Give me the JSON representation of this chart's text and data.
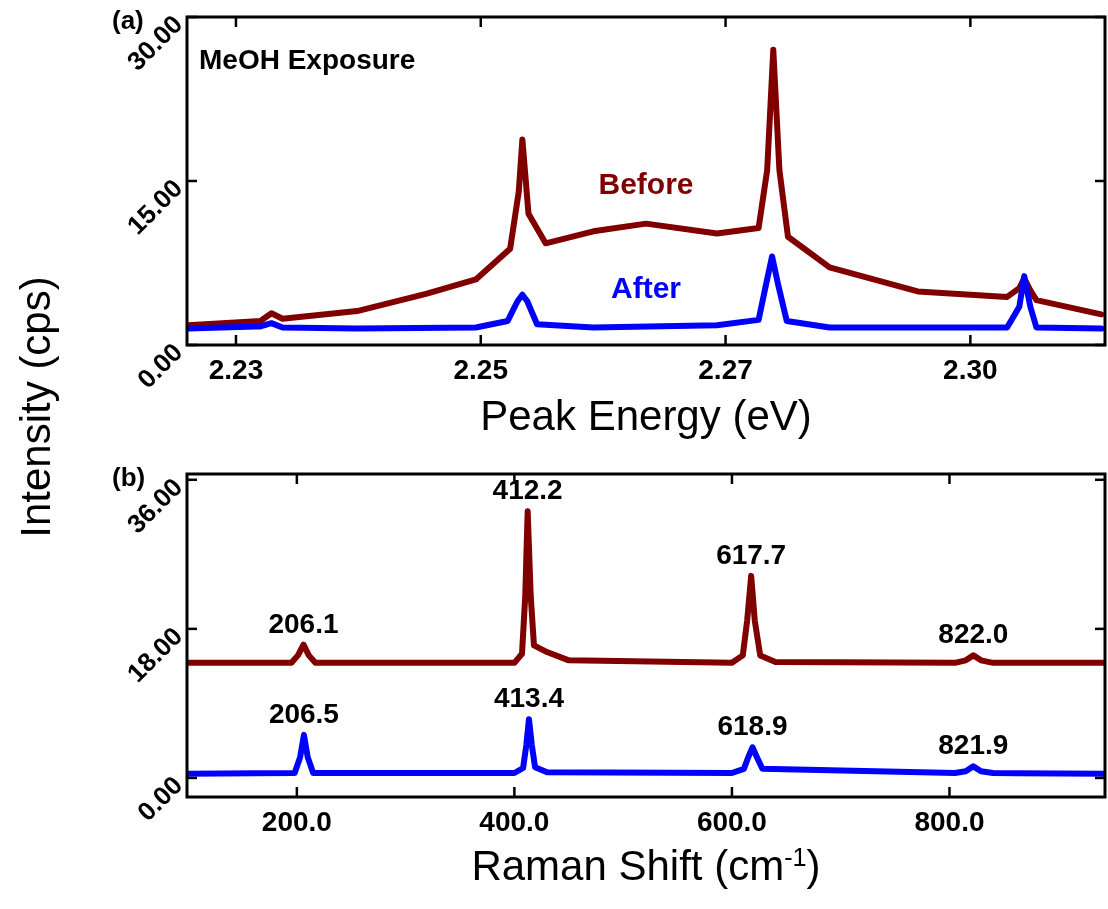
{
  "chart_data": [
    {
      "type": "line",
      "ylabel": "Intensity (cps)",
      "xlabel": "Peak Energy (eV)",
      "annotations": [
        "(a)",
        "MeOH Exposure"
      ],
      "xlim": [
        2.231,
        2.306
      ],
      "ylim": [
        0,
        30
      ],
      "xticks": [
        {
          "value": 2.235,
          "label": "2.23"
        },
        {
          "value": 2.255,
          "label": "2.25"
        },
        {
          "value": 2.275,
          "label": "2.27"
        },
        {
          "value": 2.295,
          "label": "2.30"
        }
      ],
      "yticks": [
        {
          "value": 0,
          "label": "0.00"
        },
        {
          "value": 15,
          "label": "15.00"
        },
        {
          "value": 30,
          "label": "30.00"
        }
      ],
      "grid": false,
      "legend": false,
      "line_style": "solid",
      "series": [
        {
          "name": "Before",
          "color": "#800000",
          "x": [
            2.2311,
            2.237,
            2.2379,
            2.2388,
            2.2449,
            2.2506,
            2.2546,
            2.2574,
            2.2581,
            2.2584,
            2.2589,
            2.2603,
            2.2642,
            2.2685,
            2.2743,
            2.2777,
            2.2784,
            2.2789,
            2.2794,
            2.2801,
            2.2835,
            2.2907,
            2.298,
            2.299,
            2.2994,
            2.2999,
            2.3004,
            2.3057
          ],
          "values": [
            1.8,
            2.2,
            2.9,
            2.4,
            3.1,
            4.7,
            6.0,
            8.8,
            14,
            18.8,
            12,
            9.3,
            10.4,
            11.1,
            10.2,
            10.7,
            16,
            27.0,
            16,
            9.9,
            7.1,
            4.9,
            4.4,
            5.2,
            6.1,
            5.0,
            4.1,
            2.8
          ]
        },
        {
          "name": "After",
          "color": "#0000ff",
          "x": [
            2.2311,
            2.237,
            2.2379,
            2.2388,
            2.2449,
            2.2546,
            2.2572,
            2.258,
            2.2584,
            2.2588,
            2.2596,
            2.2642,
            2.2743,
            2.2777,
            2.2783,
            2.2788,
            2.2793,
            2.28,
            2.2835,
            2.298,
            2.299,
            2.2994,
            2.2999,
            2.3004,
            2.3057
          ],
          "values": [
            1.5,
            1.7,
            2.0,
            1.6,
            1.5,
            1.6,
            2.2,
            4.0,
            4.6,
            4.0,
            1.9,
            1.6,
            1.8,
            2.3,
            5.5,
            8.1,
            5.5,
            2.2,
            1.6,
            1.6,
            3.5,
            6.3,
            3.5,
            1.6,
            1.5
          ]
        }
      ]
    },
    {
      "type": "line",
      "xlabel": "Raman Shift (cm$^{-1}$)",
      "annotations": [
        "(b)",
        {
          "text": "206.1",
          "x": 206.1,
          "y": 16.1
        },
        {
          "text": "412.2",
          "x": 412.2,
          "y": 32.2
        },
        {
          "text": "617.7",
          "x": 617.7,
          "y": 24.4
        },
        {
          "text": "822.0",
          "x": 822.0,
          "y": 14.8
        },
        {
          "text": "206.5",
          "x": 206.5,
          "y": 5.2
        },
        {
          "text": "413.4",
          "x": 413.4,
          "y": 7.1
        },
        {
          "text": "618.9",
          "x": 618.9,
          "y": 3.7
        },
        {
          "text": "821.9",
          "x": 821.9,
          "y": 1.4
        }
      ],
      "xlim": [
        99,
        943
      ],
      "ylim": [
        -2.3,
        36.7
      ],
      "xticks": [
        {
          "value": 200,
          "label": "200.0"
        },
        {
          "value": 400,
          "label": "400.0"
        },
        {
          "value": 600,
          "label": "600.0"
        },
        {
          "value": 800,
          "label": "800.0"
        }
      ],
      "yticks": [
        {
          "value": 0,
          "label": "0.00"
        },
        {
          "value": 18,
          "label": "18.00"
        },
        {
          "value": 36,
          "label": "36.00"
        }
      ],
      "grid": false,
      "legend": false,
      "line_style": "solid",
      "series": [
        {
          "color": "#800000",
          "x": [
            99,
            195,
            201,
            206.1,
            211,
            217,
            400,
            407,
            410,
            412.2,
            415,
            418,
            430,
            450,
            600,
            610,
            614,
            617.7,
            621,
            626,
            640,
            805,
            815,
            822,
            829,
            840,
            943
          ],
          "values": [
            13.9,
            13.9,
            14.8,
            16.1,
            14.8,
            13.9,
            13.9,
            15,
            22,
            32.2,
            22,
            16,
            15.2,
            14.2,
            13.9,
            14.8,
            19,
            24.4,
            19,
            14.8,
            14,
            13.9,
            14.2,
            14.8,
            14.2,
            13.9,
            13.9
          ]
        },
        {
          "color": "#0000ff",
          "x": [
            99,
            198,
            203,
            206.5,
            210,
            215,
            400,
            408,
            411,
            413.4,
            416,
            419,
            430,
            600,
            611,
            615,
            618.9,
            623,
            628,
            805,
            815,
            821.9,
            829,
            840,
            943
          ],
          "values": [
            0.5,
            0.6,
            2.5,
            5.2,
            2.5,
            0.6,
            0.6,
            1.2,
            4,
            7.1,
            4,
            1.3,
            0.7,
            0.6,
            1.1,
            2.5,
            3.7,
            2.5,
            1.1,
            0.6,
            0.8,
            1.4,
            0.8,
            0.6,
            0.5
          ]
        }
      ]
    }
  ]
}
